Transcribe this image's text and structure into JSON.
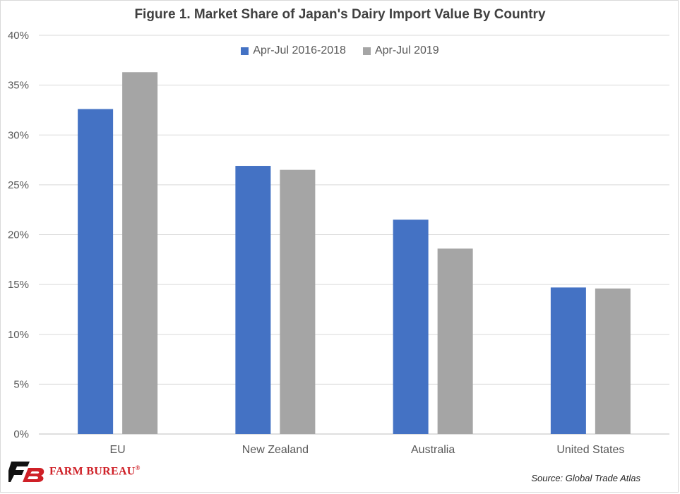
{
  "chart_data": {
    "type": "bar",
    "title": "Figure 1. Market Share of Japan's Dairy Import Value By Country",
    "categories": [
      "EU",
      "New Zealand",
      "Australia",
      "United States"
    ],
    "series": [
      {
        "name": "Apr-Jul 2016-2018",
        "values": [
          32.6,
          26.9,
          21.5,
          14.7
        ],
        "color": "#4472c4"
      },
      {
        "name": "Apr-Jul 2019",
        "values": [
          36.3,
          26.5,
          18.6,
          14.6
        ],
        "color": "#a5a5a5"
      }
    ],
    "xlabel": "",
    "ylabel": "",
    "ylim": [
      0,
      40
    ],
    "yticks": [
      "0%",
      "5%",
      "10%",
      "15%",
      "20%",
      "25%",
      "30%",
      "35%",
      "40%"
    ],
    "grid": true,
    "legend_position": "top-center"
  },
  "branding": {
    "logo_text": "FARM BUREAU",
    "logo_mark": "®"
  },
  "source": "Source: Global Trade Atlas"
}
